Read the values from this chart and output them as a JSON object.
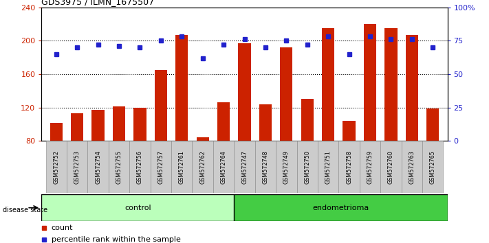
{
  "title": "GDS3975 / ILMN_1675507",
  "samples": [
    "GSM572752",
    "GSM572753",
    "GSM572754",
    "GSM572755",
    "GSM572756",
    "GSM572757",
    "GSM572761",
    "GSM572762",
    "GSM572764",
    "GSM572747",
    "GSM572748",
    "GSM572749",
    "GSM572750",
    "GSM572751",
    "GSM572758",
    "GSM572759",
    "GSM572760",
    "GSM572763",
    "GSM572765"
  ],
  "counts": [
    102,
    113,
    117,
    121,
    120,
    165,
    207,
    84,
    126,
    197,
    124,
    192,
    130,
    215,
    104,
    220,
    215,
    207,
    119
  ],
  "percentiles": [
    65,
    70,
    72,
    71,
    70,
    75,
    78,
    62,
    72,
    76,
    70,
    75,
    72,
    78,
    65,
    78,
    76,
    76,
    70
  ],
  "control_count": 9,
  "endometrioma_count": 10,
  "ylim_left": [
    80,
    240
  ],
  "ylim_right": [
    0,
    100
  ],
  "yticks_left": [
    80,
    120,
    160,
    200,
    240
  ],
  "yticks_right": [
    0,
    25,
    50,
    75,
    100
  ],
  "ytick_labels_right": [
    "0",
    "25",
    "50",
    "75",
    "100%"
  ],
  "bar_color": "#cc2200",
  "dot_color": "#2222cc",
  "control_bg": "#bbffbb",
  "endometrioma_bg": "#44cc44",
  "label_bg": "#cccccc",
  "legend_count_label": "count",
  "legend_pct_label": "percentile rank within the sample",
  "disease_state_label": "disease state",
  "control_label": "control",
  "endometrioma_label": "endometrioma"
}
